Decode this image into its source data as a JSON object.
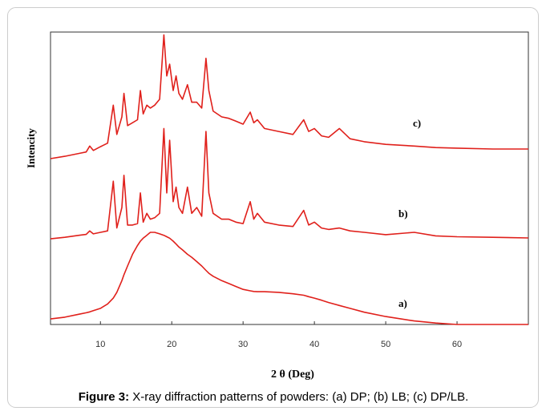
{
  "chart_data": {
    "type": "line",
    "xlabel": "2 θ (Deg)",
    "ylabel": "Intencity",
    "caption_label": "Figure 3:",
    "caption": "X-ray diffraction patterns of powders: (a) DP; (b) LB; (c) DP/LB.",
    "xlim": [
      3,
      70
    ],
    "xticks": [
      10,
      20,
      30,
      40,
      50,
      60
    ],
    "ylim": [
      0,
      100
    ],
    "x": [
      3,
      5,
      7,
      8,
      8.5,
      9,
      10,
      11,
      11.8,
      12.3,
      13,
      13.3,
      13.8,
      14.5,
      15.2,
      15.6,
      16,
      16.5,
      17,
      17.6,
      18.3,
      18.9,
      19.3,
      19.7,
      20.2,
      20.6,
      21,
      21.5,
      22.2,
      22.8,
      23.5,
      24.2,
      24.8,
      25.2,
      25.8,
      27,
      28,
      29,
      30,
      31,
      31.5,
      32,
      33,
      35,
      37,
      38.5,
      39.2,
      40,
      41,
      42,
      43.5,
      45,
      47,
      50,
      54,
      57,
      60,
      65,
      70
    ],
    "series": [
      {
        "name": "a)",
        "color": "#e0201b",
        "values": [
          1.9,
          2.5,
          3.5,
          4,
          4.3,
          4.7,
          5.5,
          7,
          9,
          11,
          15,
          17,
          20,
          24,
          27,
          28.5,
          29.5,
          30.5,
          31.5,
          31.5,
          31,
          30.5,
          30,
          29.5,
          28.5,
          27.5,
          26.5,
          25.5,
          24,
          23,
          21.5,
          20,
          18.5,
          17.5,
          16.5,
          15,
          14,
          13,
          12,
          11.5,
          11.3,
          11.2,
          11.2,
          11,
          10.5,
          10,
          9.5,
          9,
          8.3,
          7.5,
          6.5,
          5.5,
          4.2,
          2.7,
          1.2,
          0.5,
          0,
          0,
          0
        ]
      },
      {
        "name": "b)",
        "color": "#e0201b",
        "values": [
          29.3,
          29.8,
          30.5,
          30.8,
          32,
          31,
          31.5,
          32,
          49,
          33,
          40,
          51,
          34,
          34,
          34.5,
          45,
          35,
          38,
          36,
          36.5,
          38,
          67,
          45,
          63,
          42,
          47,
          40,
          38,
          47,
          38,
          40,
          37,
          66,
          45,
          38,
          36,
          36,
          35,
          34.5,
          42,
          36,
          38,
          35,
          34,
          33.5,
          39,
          34,
          35,
          33,
          32.5,
          33,
          32,
          31.5,
          30.7,
          31.5,
          30.3,
          30,
          29.8,
          29.6
        ]
      },
      {
        "name": "c)",
        "color": "#e0201b",
        "values": [
          56.7,
          57.5,
          58.5,
          59,
          61,
          59.5,
          60.8,
          62,
          75,
          65,
          71,
          79,
          68,
          69,
          70,
          80,
          72,
          75,
          74,
          75,
          77,
          99,
          85,
          89,
          80,
          85,
          79,
          77,
          82,
          76,
          76,
          74,
          91,
          80,
          73,
          71,
          70.5,
          69.5,
          68.5,
          72.6,
          69,
          70,
          67,
          66,
          65,
          70,
          66,
          67,
          64.5,
          64,
          67,
          63.5,
          62.5,
          61.6,
          61,
          60.5,
          60.3,
          60,
          60
        ]
      }
    ]
  }
}
